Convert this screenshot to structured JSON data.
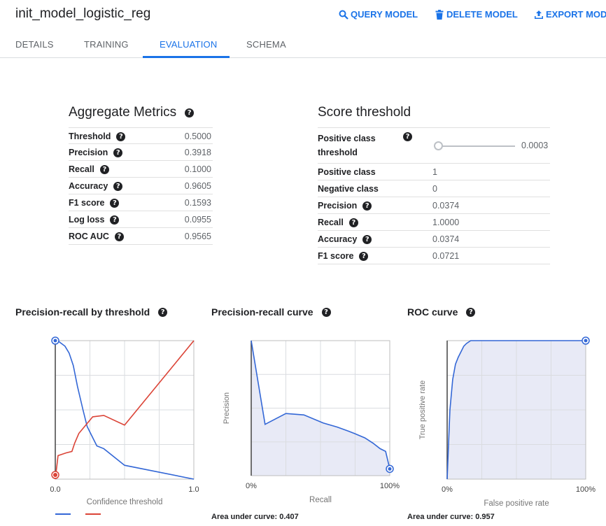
{
  "header": {
    "title": "init_model_logistic_reg",
    "actions": [
      {
        "label": "QUERY MODEL",
        "icon": "search-icon"
      },
      {
        "label": "DELETE MODEL",
        "icon": "trash-icon"
      },
      {
        "label": "EXPORT MODEL",
        "icon": "export-icon"
      }
    ]
  },
  "tabs": [
    "DETAILS",
    "TRAINING",
    "EVALUATION",
    "SCHEMA"
  ],
  "active_tab": "EVALUATION",
  "aggregate": {
    "title": "Aggregate Metrics",
    "rows": [
      {
        "label": "Threshold",
        "value": "0.5000"
      },
      {
        "label": "Precision",
        "value": "0.3918"
      },
      {
        "label": "Recall",
        "value": "0.1000"
      },
      {
        "label": "Accuracy",
        "value": "0.9605"
      },
      {
        "label": "F1 score",
        "value": "0.1593"
      },
      {
        "label": "Log loss",
        "value": "0.0955"
      },
      {
        "label": "ROC AUC",
        "value": "0.9565"
      }
    ]
  },
  "score": {
    "title": "Score threshold",
    "threshold_label_1": "Positive class",
    "threshold_label_2": "threshold",
    "slider_value": "0.0003",
    "rows": [
      {
        "label": "Positive class",
        "value": "1",
        "help": false
      },
      {
        "label": "Negative class",
        "value": "0",
        "help": false
      },
      {
        "label": "Precision",
        "value": "0.0374",
        "help": true
      },
      {
        "label": "Recall",
        "value": "1.0000",
        "help": true
      },
      {
        "label": "Accuracy",
        "value": "0.0374",
        "help": true
      },
      {
        "label": "F1 score",
        "value": "0.0721",
        "help": true
      }
    ]
  },
  "colors": {
    "accent": "#1a73e8",
    "precision_line": "#3367d6",
    "recall_line": "#db4437",
    "fill": "#e8eaf6"
  },
  "chart_data": [
    {
      "type": "line",
      "title": "Precision-recall by threshold",
      "xlabel": "Confidence threshold",
      "ylabel": "",
      "xlim": [
        0,
        1
      ],
      "ylim": [
        0,
        1
      ],
      "x_tick_labels": [
        "0.0",
        "1.0"
      ],
      "series": [
        {
          "color": "#3367d6",
          "x": [
            0,
            0.03,
            0.07,
            0.1,
            0.13,
            0.16,
            0.2,
            0.23,
            0.27,
            0.3,
            0.35,
            0.5,
            1.0
          ],
          "y": [
            1.0,
            0.99,
            0.96,
            0.91,
            0.82,
            0.67,
            0.5,
            0.38,
            0.3,
            0.24,
            0.22,
            0.1,
            0.0
          ]
        },
        {
          "color": "#db4437",
          "x": [
            0,
            0.02,
            0.05,
            0.08,
            0.12,
            0.14,
            0.17,
            0.22,
            0.27,
            0.35,
            0.5,
            1.0
          ],
          "y": [
            0.0,
            0.17,
            0.18,
            0.19,
            0.2,
            0.26,
            0.33,
            0.39,
            0.45,
            0.46,
            0.39,
            1.0
          ]
        }
      ]
    },
    {
      "type": "area",
      "title": "Precision-recall curve",
      "xlabel": "Recall",
      "ylabel": "Precision",
      "xlim": [
        0,
        1
      ],
      "ylim": [
        0,
        1
      ],
      "x_tick_labels": [
        "0%",
        "100%"
      ],
      "auc_label": "Area under curve: 0.407",
      "series": [
        {
          "x": [
            0,
            0.1,
            0.25,
            0.38,
            0.52,
            0.62,
            0.7,
            0.75,
            0.82,
            0.88,
            0.93,
            0.97,
            1.0
          ],
          "y": [
            1.0,
            0.38,
            0.46,
            0.45,
            0.39,
            0.36,
            0.33,
            0.31,
            0.28,
            0.24,
            0.2,
            0.18,
            0.05
          ]
        }
      ]
    },
    {
      "type": "area",
      "title": "ROC curve",
      "xlabel": "False positive rate",
      "ylabel": "True positive rate",
      "xlim": [
        0,
        1
      ],
      "ylim": [
        0,
        1
      ],
      "x_tick_labels": [
        "0%",
        "100%"
      ],
      "auc_label": "Area under curve: 0.957",
      "series": [
        {
          "x": [
            0,
            0.02,
            0.04,
            0.06,
            0.08,
            0.1,
            0.12,
            0.14,
            0.17,
            1.0
          ],
          "y": [
            0,
            0.5,
            0.72,
            0.83,
            0.88,
            0.92,
            0.96,
            0.98,
            1.0,
            1.0
          ]
        }
      ]
    }
  ]
}
